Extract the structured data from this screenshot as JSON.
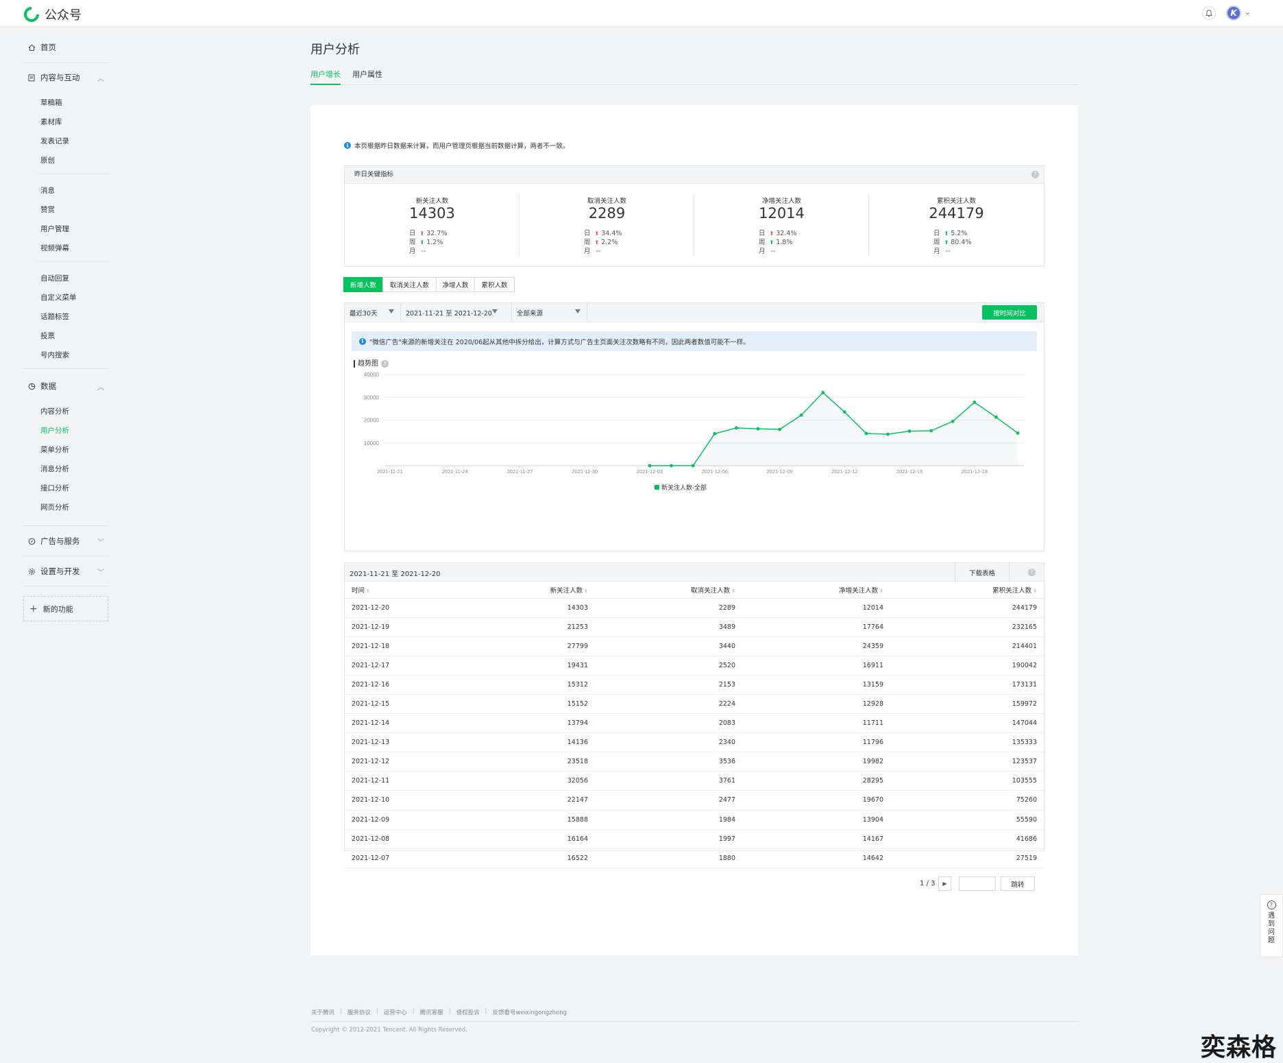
{
  "app": {
    "name": "公众号"
  },
  "sidebar": {
    "home": "首页",
    "content_section": "内容与互动",
    "content_items": [
      "草稿箱",
      "素材库",
      "发表记录",
      "原创"
    ],
    "interact_items": [
      "消息",
      "赞赏",
      "用户管理",
      "视频弹幕"
    ],
    "func_items": [
      "自动回复",
      "自定义菜单",
      "话题标签",
      "投票",
      "号内搜索"
    ],
    "data_section": "数据",
    "data_items": [
      "内容分析",
      "用户分析",
      "菜单分析",
      "消息分析",
      "接口分析",
      "网页分析"
    ],
    "ads_section": "广告与服务",
    "settings_section": "设置与开发",
    "new_func": "新的功能"
  },
  "page": {
    "title": "用户分析",
    "tabs": [
      "用户增长",
      "用户属性"
    ],
    "notice": "本页根据昨日数据来计算，而用户管理页根据当前数据计算，两者不一致。"
  },
  "kpi": {
    "header": "昨日关键指标",
    "items": [
      {
        "label": "新关注人数",
        "value": "14303",
        "day_label": "日",
        "day": "32.7%",
        "day_dir": "up",
        "week_label": "周",
        "week": "1.2%",
        "week_dir": "down",
        "month_label": "月",
        "month": "--"
      },
      {
        "label": "取消关注人数",
        "value": "2289",
        "day_label": "日",
        "day": "34.4%",
        "day_dir": "up",
        "week_label": "周",
        "week": "2.2%",
        "week_dir": "up",
        "month_label": "月",
        "month": "--"
      },
      {
        "label": "净增关注人数",
        "value": "12014",
        "day_label": "日",
        "day": "32.4%",
        "day_dir": "up",
        "week_label": "周",
        "week": "1.8%",
        "week_dir": "down",
        "month_label": "月",
        "month": "--"
      },
      {
        "label": "累积关注人数",
        "value": "244179",
        "day_label": "日",
        "day": "5.2%",
        "day_dir": "down",
        "week_label": "周",
        "week": "80.4%",
        "week_dir": "down",
        "month_label": "月",
        "month": "--"
      }
    ]
  },
  "segments": [
    "新增人数",
    "取消关注人数",
    "净增人数",
    "累积人数"
  ],
  "filters": {
    "period": "最近30天",
    "range": "2021-11-21 至 2021-12-20",
    "source": "全部来源",
    "compare": "按时间对比"
  },
  "chart_note": "\"微信广告\"来源的新增关注在 2020/06起从其他中拆分给出，计算方式与广告主页面关注次数略有不同，因此两者数值可能不一样。",
  "trend_title": "趋势图",
  "chart_data": {
    "type": "line",
    "title": "",
    "x": [
      "2021-11-21",
      "2021-11-22",
      "2021-11-23",
      "2021-11-24",
      "2021-11-25",
      "2021-11-26",
      "2021-11-27",
      "2021-11-28",
      "2021-11-29",
      "2021-11-30",
      "2021-12-01",
      "2021-12-02",
      "2021-12-03",
      "2021-12-04",
      "2021-12-05",
      "2021-12-06",
      "2021-12-07",
      "2021-12-08",
      "2021-12-09",
      "2021-12-10",
      "2021-12-11",
      "2021-12-12",
      "2021-12-13",
      "2021-12-14",
      "2021-12-15",
      "2021-12-16",
      "2021-12-17",
      "2021-12-18",
      "2021-12-19",
      "2021-12-20"
    ],
    "xticks": [
      "2021-11-21",
      "2021-11-24",
      "2021-11-27",
      "2021-11-30",
      "2021-12-03",
      "2021-12-06",
      "2021-12-09",
      "2021-12-12",
      "2021-12-15",
      "2021-12-18"
    ],
    "series": [
      {
        "name": "新关注人数-全部",
        "color": "#07c160",
        "values": [
          null,
          null,
          null,
          null,
          null,
          null,
          null,
          null,
          null,
          null,
          null,
          null,
          0,
          0,
          0,
          14000,
          16522,
          16164,
          15888,
          22147,
          32056,
          23518,
          14136,
          13794,
          15152,
          15312,
          19431,
          27799,
          21253,
          14303
        ]
      }
    ],
    "ylim": [
      0,
      40000
    ],
    "yticks": [
      10000,
      20000,
      30000,
      40000
    ]
  },
  "table": {
    "range": "2021-11-21 至 2021-12-20",
    "download": "下载表格",
    "columns": [
      "时间",
      "新关注人数",
      "取消关注人数",
      "净增关注人数",
      "累积关注人数"
    ],
    "rows": [
      [
        "2021-12-20",
        "14303",
        "2289",
        "12014",
        "244179"
      ],
      [
        "2021-12-19",
        "21253",
        "3489",
        "17764",
        "232165"
      ],
      [
        "2021-12-18",
        "27799",
        "3440",
        "24359",
        "214401"
      ],
      [
        "2021-12-17",
        "19431",
        "2520",
        "16911",
        "190042"
      ],
      [
        "2021-12-16",
        "15312",
        "2153",
        "13159",
        "173131"
      ],
      [
        "2021-12-15",
        "15152",
        "2224",
        "12928",
        "159972"
      ],
      [
        "2021-12-14",
        "13794",
        "2083",
        "11711",
        "147044"
      ],
      [
        "2021-12-13",
        "14136",
        "2340",
        "11796",
        "135333"
      ],
      [
        "2021-12-12",
        "23518",
        "3536",
        "19982",
        "123537"
      ],
      [
        "2021-12-11",
        "32056",
        "3761",
        "28295",
        "103555"
      ],
      [
        "2021-12-10",
        "22147",
        "2477",
        "19670",
        "75260"
      ],
      [
        "2021-12-09",
        "15888",
        "1984",
        "13904",
        "55590"
      ],
      [
        "2021-12-08",
        "16164",
        "1997",
        "14167",
        "41686"
      ],
      [
        "2021-12-07",
        "16522",
        "1880",
        "14642",
        "27519"
      ]
    ],
    "page_info": "1 / 3",
    "jump": "跳转"
  },
  "footer": {
    "links": [
      "关于腾讯",
      "服务协议",
      "运营中心",
      "腾讯客服",
      "侵权投诉",
      "反馈看号weixingongzhong"
    ],
    "copyright": "Copyright © 2012-2021 Tencent. All Rights Reserved."
  },
  "help": "遇到问题",
  "watermark": "奕森格"
}
